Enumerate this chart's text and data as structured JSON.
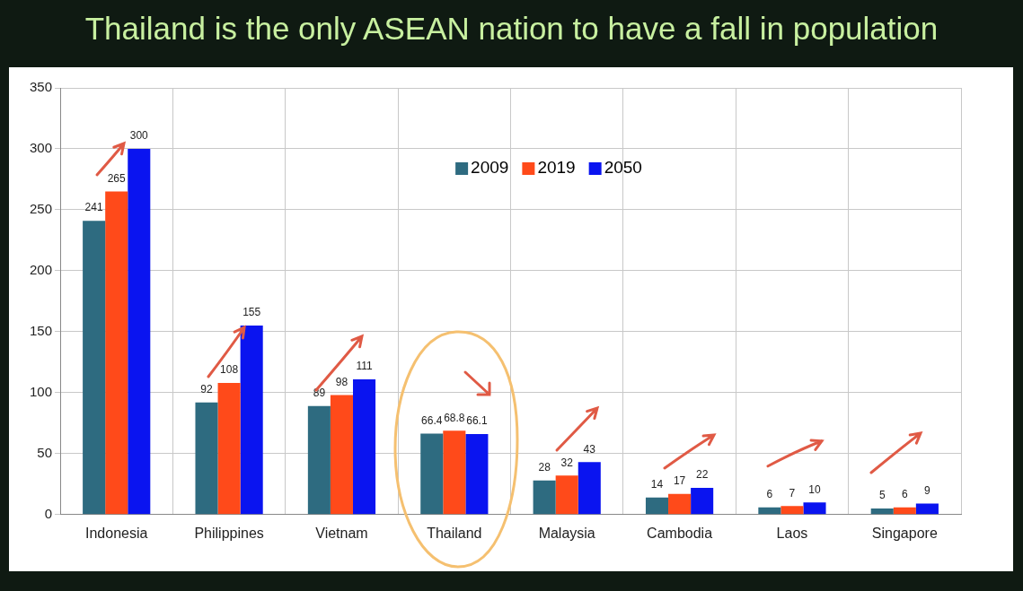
{
  "chart_data": {
    "type": "bar",
    "title": "Thailand is the only ASEAN nation to have a fall in population",
    "categories": [
      "Indonesia",
      "Philippines",
      "Vietnam",
      "Thailand",
      "Malaysia",
      "Cambodia",
      "Laos",
      "Singapore"
    ],
    "series": [
      {
        "name": "2009",
        "color": "#2e6b80",
        "values": [
          241,
          92,
          89,
          66.4,
          28,
          14,
          6,
          5
        ]
      },
      {
        "name": "2019",
        "color": "#ff4a1a",
        "values": [
          265,
          108,
          98,
          68.8,
          32,
          17,
          7,
          6
        ]
      },
      {
        "name": "2050",
        "color": "#0a14f0",
        "values": [
          300,
          155,
          111,
          66.1,
          43,
          22,
          10,
          9
        ]
      }
    ],
    "ylim": [
      0,
      350
    ],
    "yticks": [
      0,
      50,
      100,
      150,
      200,
      250,
      300,
      350
    ],
    "grid": true,
    "legend": "top",
    "data_labels": true
  }
}
